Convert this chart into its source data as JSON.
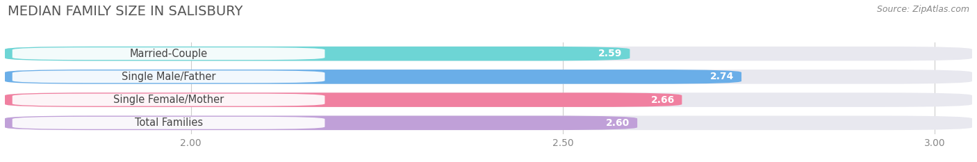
{
  "title": "MEDIAN FAMILY SIZE IN SALISBURY",
  "source": "Source: ZipAtlas.com",
  "categories": [
    "Married-Couple",
    "Single Male/Father",
    "Single Female/Mother",
    "Total Families"
  ],
  "values": [
    2.59,
    2.74,
    2.66,
    2.6
  ],
  "colors": [
    "#6dd5d5",
    "#6aaee8",
    "#f080a0",
    "#c0a0d8"
  ],
  "bar_background": "#e8e8ef",
  "xlim_data": [
    1.75,
    3.05
  ],
  "xstart": 1.75,
  "xticks": [
    2.0,
    2.5,
    3.0
  ],
  "xtick_labels": [
    "2.00",
    "2.50",
    "3.00"
  ],
  "label_fontsize": 10.5,
  "value_fontsize": 10,
  "title_fontsize": 14,
  "source_fontsize": 9,
  "title_color": "#555555",
  "source_color": "#888888",
  "background_color": "#ffffff",
  "bar_height": 0.62,
  "bar_gap": 0.38,
  "value_color": "white",
  "label_color": "#444444",
  "grid_color": "#cccccc",
  "tick_color": "#888888"
}
